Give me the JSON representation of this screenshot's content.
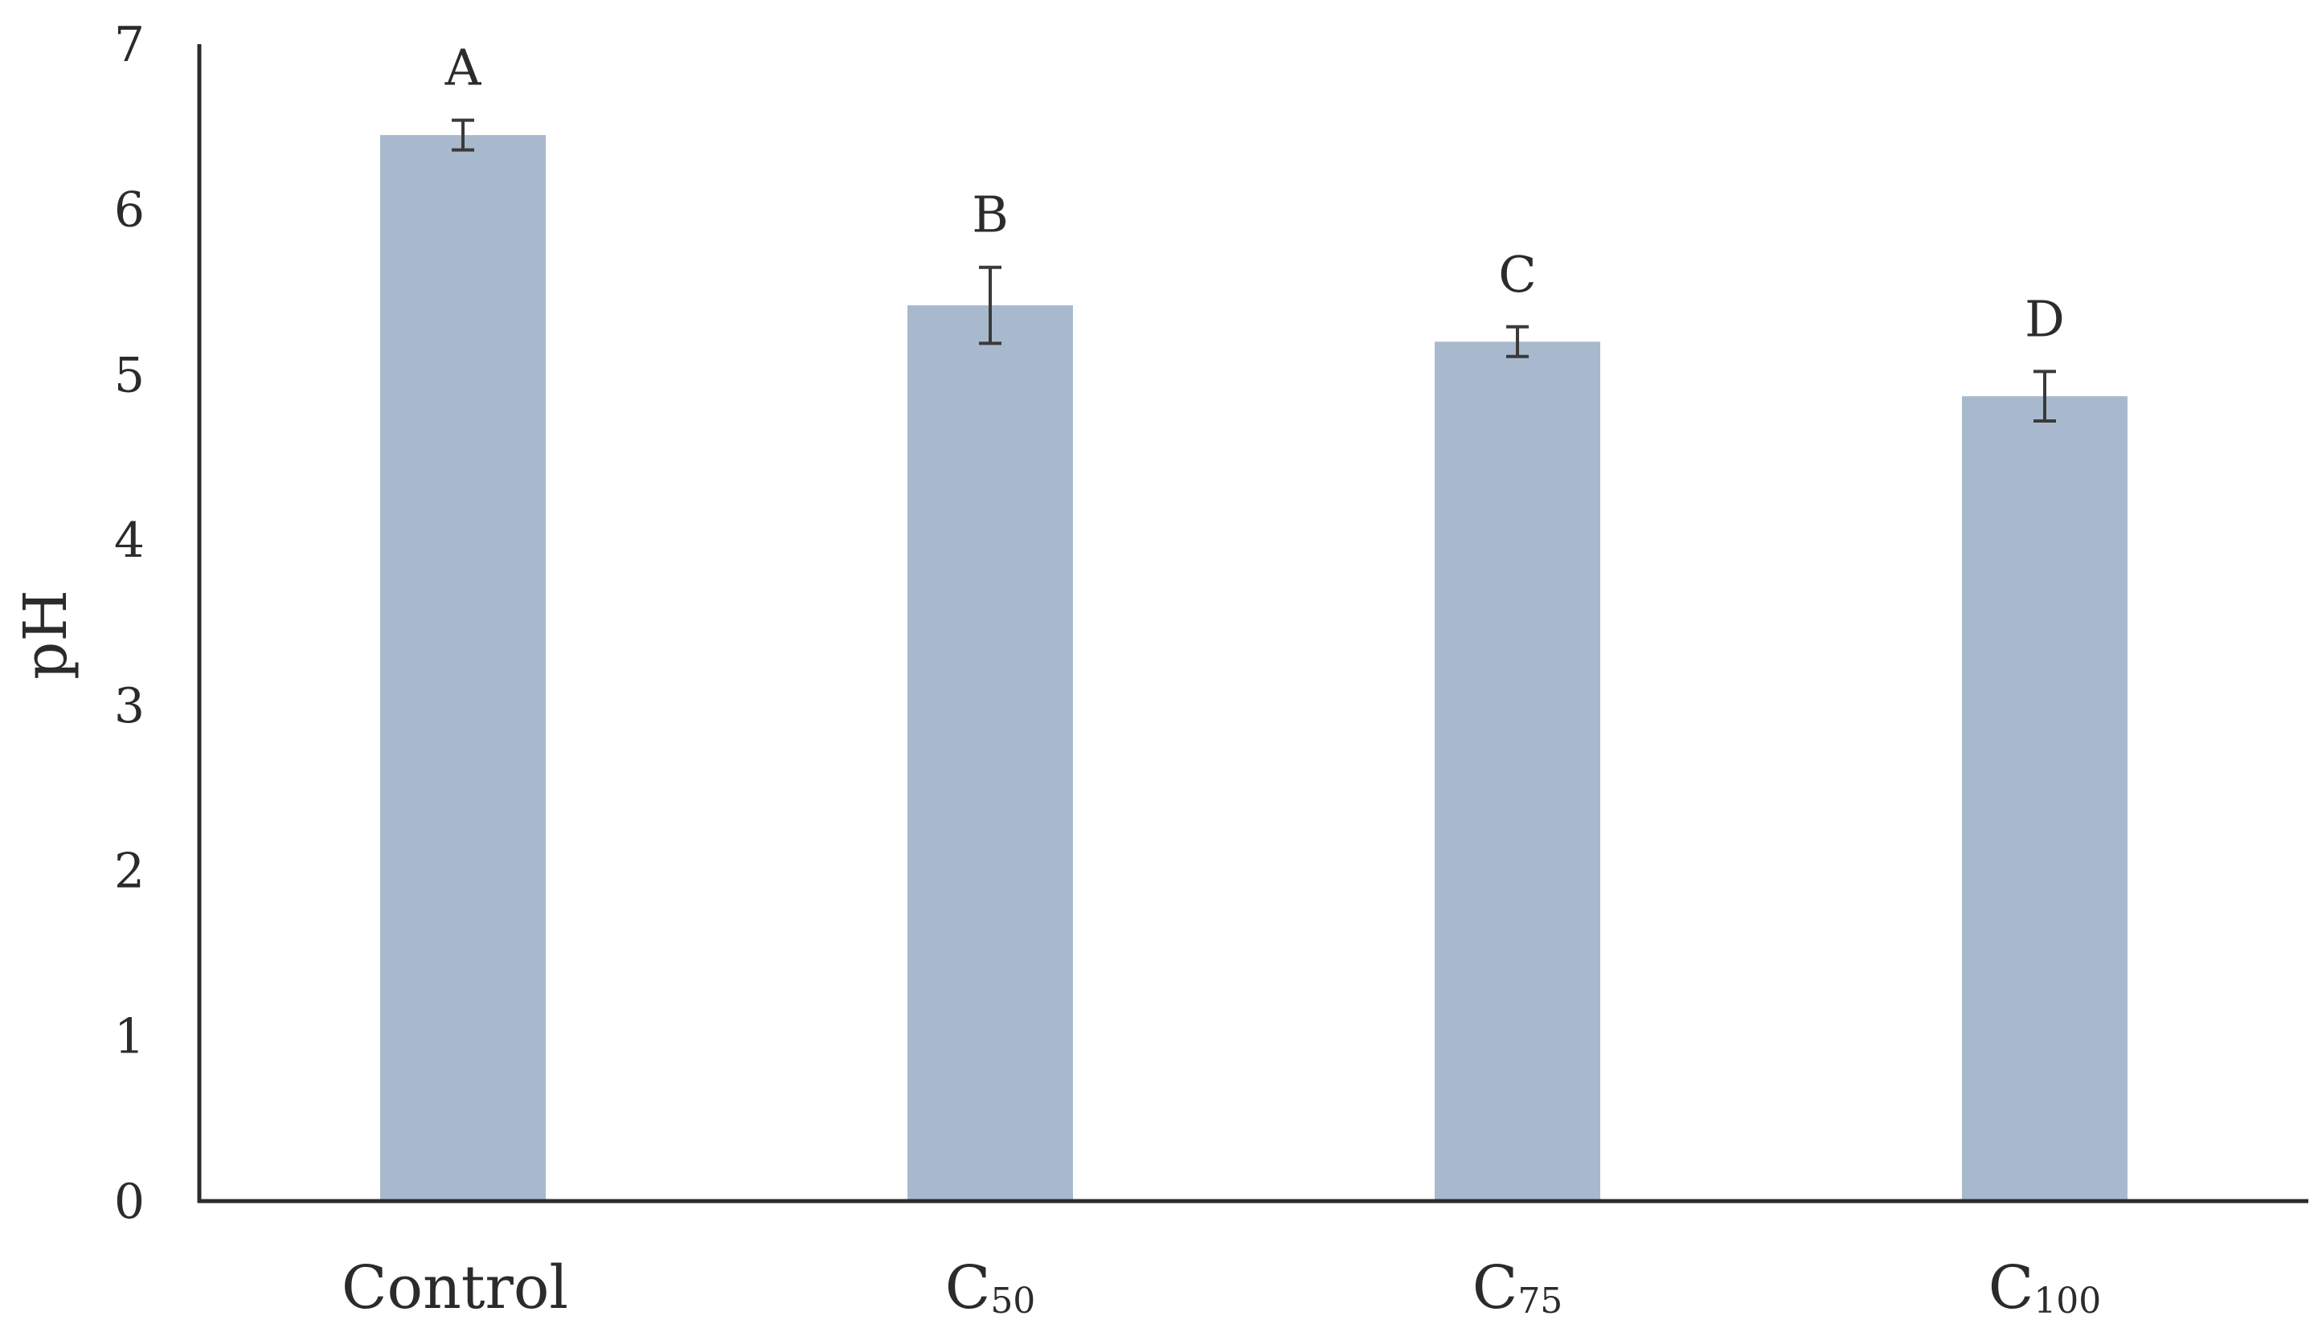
{
  "chart_data": {
    "type": "bar",
    "ylabel": "pH",
    "ylim": [
      0,
      7
    ],
    "yticks": [
      "0",
      "1",
      "2",
      "3",
      "4",
      "5",
      "6",
      "7"
    ],
    "grid": false,
    "bar_color": "#a9b9cd",
    "categories": [
      {
        "main": "Control",
        "sub": ""
      },
      {
        "main": "C",
        "sub": "50"
      },
      {
        "main": "C",
        "sub": "75"
      },
      {
        "main": "C",
        "sub": "100"
      }
    ],
    "values": [
      6.45,
      5.42,
      5.2,
      4.87
    ],
    "errors": [
      0.09,
      0.23,
      0.09,
      0.15
    ],
    "significance_letters": [
      "A",
      "B",
      "C",
      "D"
    ]
  }
}
